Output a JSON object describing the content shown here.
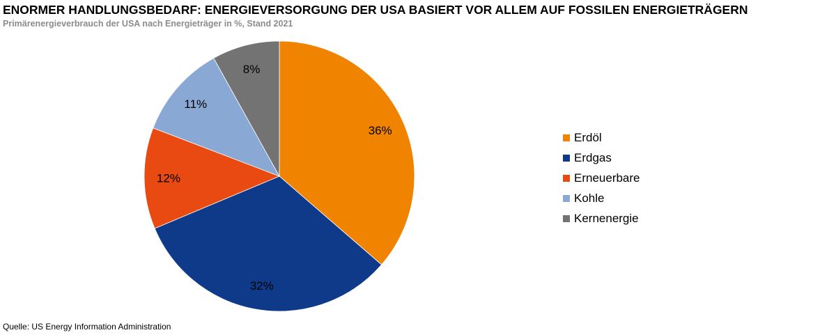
{
  "title": "ENORMER HANDLUNGSBEDARF: ENERGIEVERSORGUNG DER USA BASIERT VOR ALLEM AUF FOSSILEN ENERGIETRÄGERN",
  "subtitle": "Primärenergieverbrauch der USA nach Energieträger in %, Stand 2021",
  "source": "Quelle: US Energy Information Administration",
  "chart_data": {
    "type": "pie",
    "title": "ENORMER HANDLUNGSBEDARF: ENERGIEVERSORGUNG DER USA BASIERT VOR ALLEM AUF FOSSILEN ENERGIETRÄGERN",
    "subtitle": "Primärenergieverbrauch der USA nach Energieträger in %, Stand 2021",
    "categories": [
      "Erdöl",
      "Erdgas",
      "Erneuerbare",
      "Kohle",
      "Kernenergie"
    ],
    "values": [
      36,
      32,
      12,
      11,
      8
    ],
    "labels": [
      "36%",
      "32%",
      "12%",
      "11%",
      "8%"
    ],
    "colors": [
      "#f08300",
      "#0f3a8a",
      "#e84a12",
      "#8aa8d4",
      "#737373"
    ],
    "start_angle": "top, clockwise",
    "legend_position": "right"
  }
}
